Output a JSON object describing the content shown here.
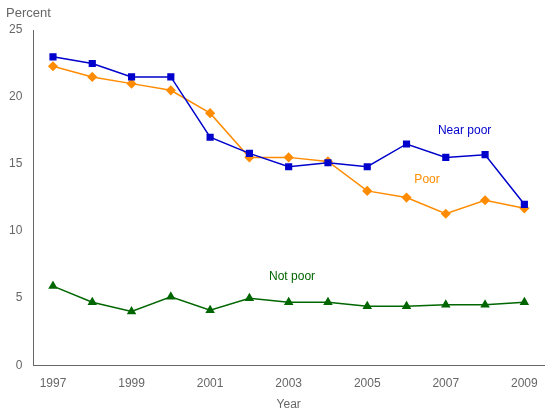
{
  "chart_data": {
    "type": "line",
    "xlabel": "Year",
    "ylabel": "Percent",
    "x": [
      1997,
      1998,
      1999,
      2000,
      2001,
      2002,
      2003,
      2004,
      2005,
      2006,
      2007,
      2008,
      2009
    ],
    "series": [
      {
        "name": "Near poor",
        "color": "#0000cc",
        "marker": "square",
        "values": [
          23.0,
          22.5,
          21.5,
          21.5,
          17.0,
          15.8,
          14.8,
          15.1,
          14.8,
          16.5,
          15.5,
          15.7,
          12.0
        ]
      },
      {
        "name": "Poor",
        "color": "#ff8c00",
        "marker": "diamond",
        "values": [
          22.3,
          21.5,
          21.0,
          20.5,
          18.8,
          15.5,
          15.5,
          15.2,
          13.0,
          12.5,
          11.3,
          12.3,
          11.7
        ]
      },
      {
        "name": "Not poor",
        "color": "#006600",
        "marker": "triangle",
        "values": [
          5.9,
          4.7,
          4.0,
          5.1,
          4.1,
          5.0,
          4.7,
          4.7,
          4.4,
          4.4,
          4.5,
          4.5,
          4.7
        ]
      }
    ],
    "annotations": [
      {
        "text": "Near poor",
        "x": 2006.8,
        "y": 17.5,
        "color": "#0000cc"
      },
      {
        "text": "Poor",
        "x": 2006.2,
        "y": 13.8,
        "color": "#ff8c00"
      },
      {
        "text": "Not poor",
        "x": 2002.5,
        "y": 6.6,
        "color": "#006600"
      }
    ],
    "xlim": [
      1996.5,
      2009.5
    ],
    "xticks": [
      1997,
      1999,
      2001,
      2003,
      2005,
      2007,
      2009
    ],
    "ylim": [
      0,
      25
    ],
    "yticks": [
      0,
      5,
      10,
      15,
      20,
      25
    ],
    "grid": false
  }
}
